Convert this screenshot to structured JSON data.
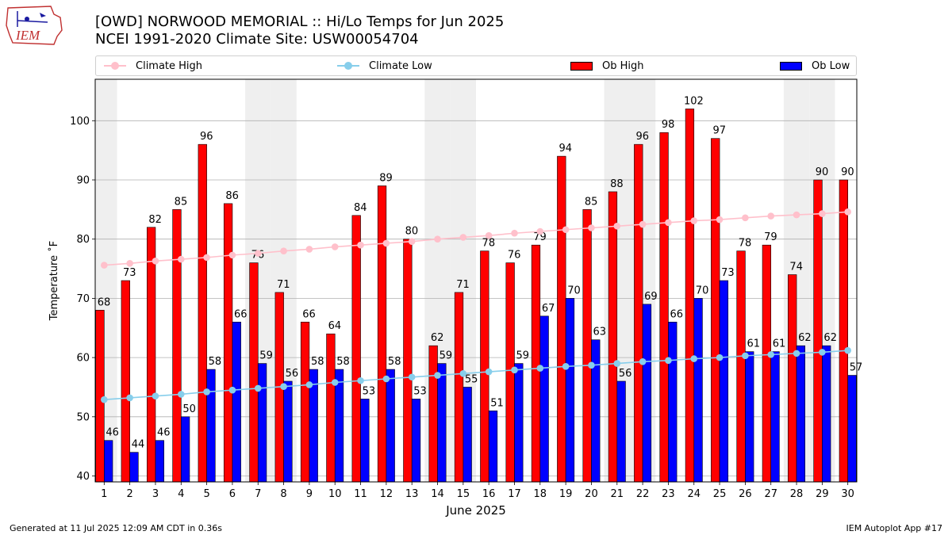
{
  "header": {
    "title_line1": "[OWD] NORWOOD MEMORIAL :: Hi/Lo Temps for Jun 2025",
    "title_line2": "NCEI 1991-2020 Climate Site: USW00054704",
    "logo_text": "IEM"
  },
  "legend": {
    "climate_high": "Climate High",
    "climate_low": "Climate Low",
    "ob_high": "Ob High",
    "ob_low": "Ob Low"
  },
  "footer": {
    "generated": "Generated at 11 Jul 2025 12:09 AM CDT in 0.36s",
    "app": "IEM Autoplot App #17"
  },
  "colors": {
    "ob_high": "#ff0000",
    "ob_low": "#0000ff",
    "climate_high": "#ffc0cb",
    "climate_low": "#87ceeb",
    "weekend_band": "#efefef",
    "grid": "#b0b0b0"
  },
  "chart_data": {
    "type": "bar",
    "xlabel": "June 2025",
    "ylabel": "Temperature ˚F",
    "ylim": [
      39,
      107
    ],
    "yticks": [
      40,
      50,
      60,
      70,
      80,
      90,
      100
    ],
    "grid": "horizontal",
    "legend_position": "top",
    "categories": [
      "1",
      "2",
      "3",
      "4",
      "5",
      "6",
      "7",
      "8",
      "9",
      "10",
      "11",
      "12",
      "13",
      "14",
      "15",
      "16",
      "17",
      "18",
      "19",
      "20",
      "21",
      "22",
      "23",
      "24",
      "25",
      "26",
      "27",
      "28",
      "29",
      "30"
    ],
    "weekend_days": [
      1,
      7,
      8,
      14,
      15,
      21,
      22,
      28,
      29
    ],
    "series": [
      {
        "name": "Ob High",
        "kind": "bar",
        "labels": true,
        "values": [
          68,
          73,
          82,
          85,
          96,
          86,
          76,
          71,
          66,
          64,
          84,
          89,
          80,
          62,
          71,
          78,
          76,
          79,
          94,
          85,
          88,
          96,
          98,
          102,
          97,
          78,
          79,
          74,
          90,
          90
        ]
      },
      {
        "name": "Ob Low",
        "kind": "bar",
        "labels": true,
        "values": [
          46,
          44,
          46,
          50,
          58,
          66,
          59,
          56,
          58,
          58,
          53,
          58,
          53,
          59,
          55,
          51,
          59,
          67,
          70,
          63,
          56,
          69,
          66,
          70,
          73,
          61,
          61,
          62,
          62,
          57
        ]
      },
      {
        "name": "Climate High",
        "kind": "line",
        "values": [
          75.6,
          75.9,
          76.3,
          76.6,
          76.9,
          77.3,
          77.6,
          78.0,
          78.3,
          78.7,
          79.0,
          79.3,
          79.6,
          80.0,
          80.3,
          80.6,
          81.0,
          81.3,
          81.6,
          81.9,
          82.2,
          82.5,
          82.8,
          83.1,
          83.3,
          83.6,
          83.9,
          84.1,
          84.3,
          84.6
        ]
      },
      {
        "name": "Climate Low",
        "kind": "line",
        "values": [
          52.9,
          53.2,
          53.5,
          53.8,
          54.2,
          54.5,
          54.8,
          55.1,
          55.4,
          55.8,
          56.1,
          56.4,
          56.7,
          57.0,
          57.3,
          57.6,
          57.9,
          58.2,
          58.5,
          58.7,
          59.0,
          59.3,
          59.5,
          59.8,
          60.0,
          60.3,
          60.5,
          60.7,
          60.9,
          61.2
        ]
      }
    ]
  }
}
